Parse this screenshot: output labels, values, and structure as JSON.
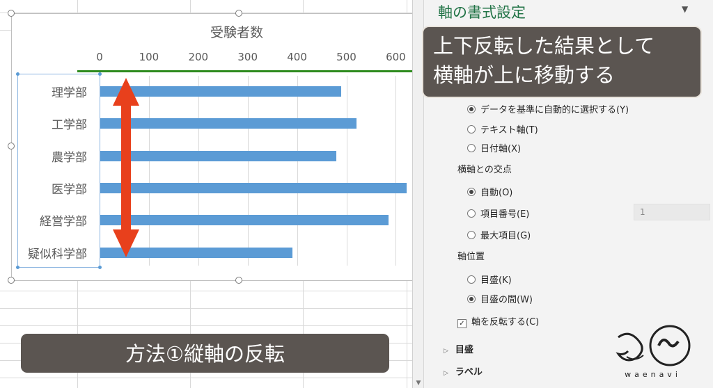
{
  "chart_data": {
    "type": "bar",
    "title": "受験者数",
    "x_ticks": [
      "0",
      "100",
      "200",
      "300",
      "400",
      "500",
      "600"
    ],
    "xlim": [
      0,
      620
    ],
    "categories": [
      "理学部",
      "工学部",
      "農学部",
      "医学部",
      "経営学部",
      "疑似科学部"
    ],
    "values": [
      490,
      520,
      480,
      625,
      585,
      390
    ],
    "bar_color": "#5b9bd5",
    "axis_position": "top",
    "highlight_color": "#2e8b1e"
  },
  "pane": {
    "title": "軸の書式設定",
    "axis_type_options": [
      {
        "label": "データを基準に自動的に選択する(Y)",
        "selected": true
      },
      {
        "label": "テキスト軸(T)",
        "selected": false
      },
      {
        "label": "日付軸(X)",
        "selected": false
      }
    ],
    "crosses_label": "横軸との交点",
    "crosses_options": [
      {
        "label": "自動(O)",
        "selected": true
      },
      {
        "label": "項目番号(E)",
        "selected": false
      },
      {
        "label": "最大項目(G)",
        "selected": false
      }
    ],
    "crosses_value": "1",
    "axis_position_label": "軸位置",
    "axis_position_options": [
      {
        "label": "目盛(K)",
        "selected": false
      },
      {
        "label": "目盛の間(W)",
        "selected": true
      }
    ],
    "reverse_label": "軸を反転する(C)",
    "reverse_checked": true,
    "expanders": [
      "目盛",
      "ラベル"
    ]
  },
  "callout_top_lines": [
    "上下反転した結果として",
    "横軸が上に移動する"
  ],
  "callout_bottom": "方法①縦軸の反転",
  "logo_text": "waenavi",
  "colors": {
    "accent_red": "#e8401c",
    "pane_title": "#217346",
    "callout_bg": "#5b5551"
  }
}
